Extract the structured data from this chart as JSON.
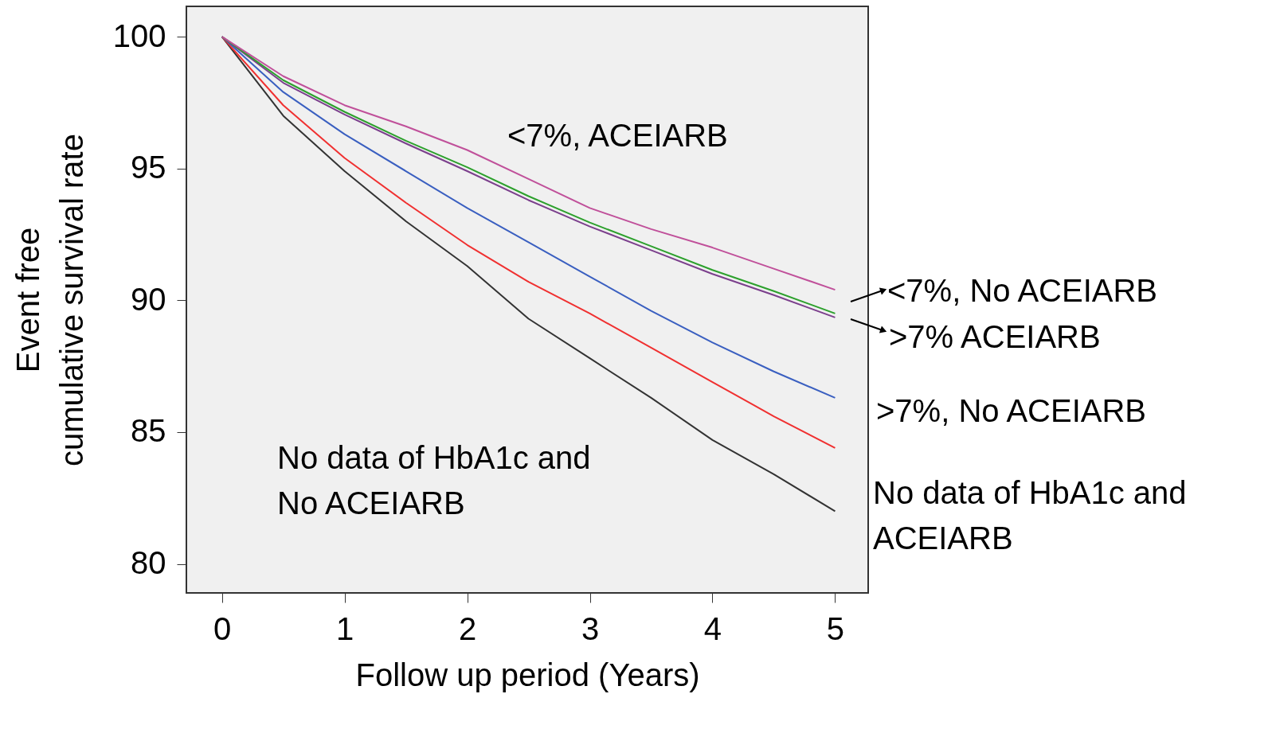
{
  "chart_data": {
    "type": "line",
    "xlabel": "Follow up period (Years)",
    "ylabel": "Event free\ncumulative survival rate",
    "x": [
      0,
      0.5,
      1,
      1.5,
      2,
      2.5,
      3,
      3.5,
      4,
      4.5,
      5
    ],
    "series": [
      {
        "color": "#333333",
        "values": [
          100,
          97.0,
          94.9,
          93.0,
          91.3,
          89.3,
          87.8,
          86.3,
          84.7,
          83.4,
          82.0
        ]
      },
      {
        "color": "#f03030",
        "values": [
          100,
          97.4,
          95.4,
          93.7,
          92.1,
          90.7,
          89.5,
          88.2,
          86.9,
          85.6,
          84.4
        ]
      },
      {
        "color": "#3a5fc0",
        "values": [
          100,
          97.9,
          96.3,
          94.9,
          93.5,
          92.2,
          90.9,
          89.6,
          88.4,
          87.3,
          86.3
        ]
      },
      {
        "color": "#7b3f8c",
        "values": [
          100,
          98.25,
          97.05,
          95.95,
          94.9,
          93.8,
          92.8,
          91.9,
          91.0,
          90.2,
          89.35
        ]
      },
      {
        "color": "#2ca02c",
        "values": [
          100,
          98.35,
          97.15,
          96.05,
          95.05,
          93.95,
          92.95,
          92.05,
          91.15,
          90.35,
          89.5
        ]
      },
      {
        "color": "#c0509a",
        "values": [
          100,
          98.5,
          97.4,
          96.6,
          95.7,
          94.6,
          93.5,
          92.7,
          92.0,
          91.2,
          90.4
        ]
      }
    ],
    "xlim": [
      -0.29,
      5.27
    ],
    "ylim": [
      78.9,
      101.15
    ],
    "xticks": [
      0,
      1,
      2,
      3,
      4,
      5
    ],
    "yticks": [
      80,
      85,
      90,
      95,
      100
    ],
    "grid": false,
    "annotations": [
      "<7%, ACEIARB",
      "No data of HbA1c and\nNo ACEIARB",
      "<7%, No ACEIARB",
      ">7% ACEIARB",
      ">7%, No ACEIARB",
      "No data of HbA1c and\nACEIARB"
    ]
  }
}
